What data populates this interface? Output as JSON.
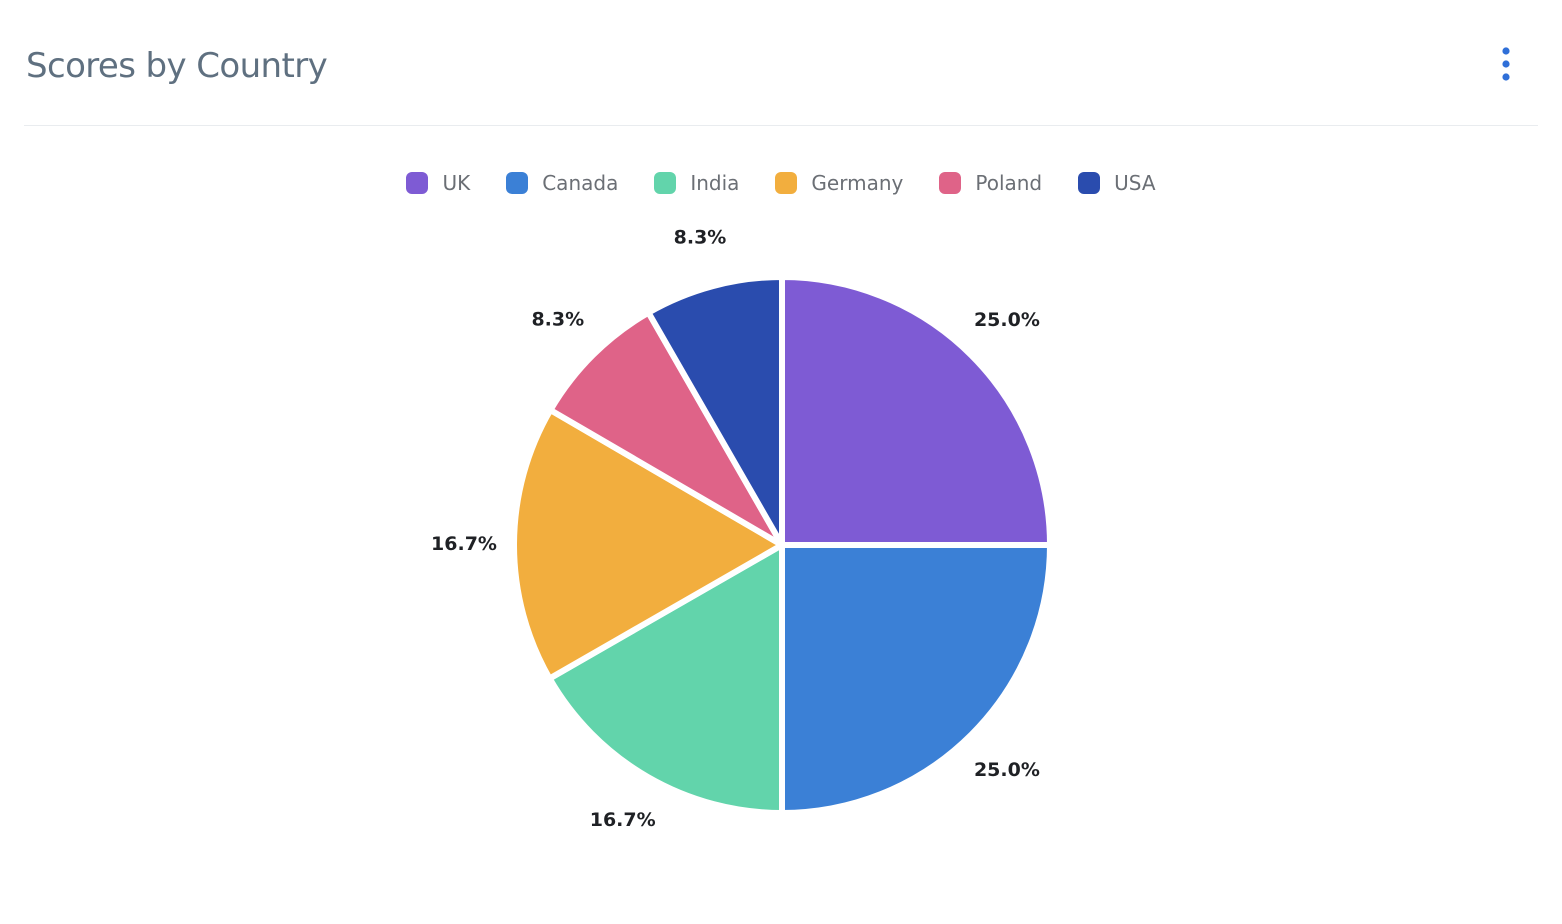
{
  "header": {
    "title": "Scores by Country",
    "menu_icon": "vertical-ellipsis-icon"
  },
  "colors": {
    "title_text": "#5f7080",
    "menu_icon": "#2f6fd8",
    "label_text": "#1f2125",
    "legend_text": "#6b6f75"
  },
  "chart_data": {
    "type": "pie",
    "title": "",
    "categories": [
      "UK",
      "Canada",
      "India",
      "Germany",
      "Poland",
      "USA"
    ],
    "values": [
      25.0,
      25.0,
      16.7,
      16.7,
      8.3,
      8.3
    ],
    "labels": [
      "25.0%",
      "25.0%",
      "16.7%",
      "16.7%",
      "8.3%",
      "8.3%"
    ],
    "colors": [
      "#7e5bd4",
      "#3b80d6",
      "#62d4ab",
      "#f2ae3e",
      "#df6388",
      "#2a4cae"
    ],
    "start_angle_deg": 0,
    "direction": "clockwise",
    "legend_position": "top"
  }
}
